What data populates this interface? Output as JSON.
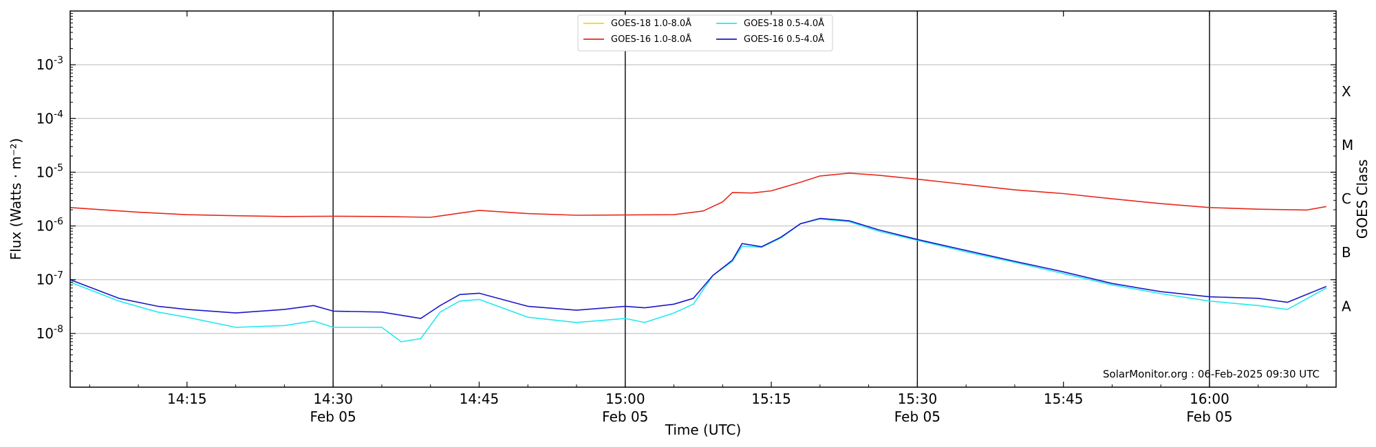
{
  "chart_data": {
    "type": "line",
    "xlabel": "Time (UTC)",
    "ylabel": "Flux (Watts · m⁻²)",
    "y2label": "GOES Class",
    "yscale": "log",
    "ylim": [
      1e-09,
      0.01
    ],
    "xlim": [
      "14:03",
      "16:13"
    ],
    "grid": "horizontal",
    "legend_position": "top-center",
    "x_ticks": [
      {
        "time": "14:15",
        "date": ""
      },
      {
        "time": "14:30",
        "date": "Feb 05"
      },
      {
        "time": "14:45",
        "date": ""
      },
      {
        "time": "15:00",
        "date": "Feb 05"
      },
      {
        "time": "15:15",
        "date": ""
      },
      {
        "time": "15:30",
        "date": "Feb 05"
      },
      {
        "time": "15:45",
        "date": ""
      },
      {
        "time": "16:00",
        "date": "Feb 05"
      }
    ],
    "vlines": [
      "14:30",
      "15:00",
      "15:30",
      "16:00"
    ],
    "y_ticks": [
      {
        "exp": "-3",
        "value": 0.001
      },
      {
        "exp": "-4",
        "value": 0.0001
      },
      {
        "exp": "-5",
        "value": 1e-05
      },
      {
        "exp": "-6",
        "value": 1e-06
      },
      {
        "exp": "-7",
        "value": 1e-07
      },
      {
        "exp": "-8",
        "value": 1e-08
      }
    ],
    "goes_classes": [
      {
        "label": "X",
        "value": 0.00032
      },
      {
        "label": "M",
        "value": 3.2e-05
      },
      {
        "label": "C",
        "value": 3.2e-06
      },
      {
        "label": "B",
        "value": 3.2e-07
      },
      {
        "label": "A",
        "value": 3.2e-08
      }
    ],
    "legend": [
      {
        "label": "GOES-18 1.0-8.0Å",
        "color": "#f2d900"
      },
      {
        "label": "GOES-16 1.0-8.0Å",
        "color": "#e8271a"
      },
      {
        "label": "GOES-18 0.5-4.0Å",
        "color": "#22e8f0"
      },
      {
        "label": "GOES-16 0.5-4.0Å",
        "color": "#1c16c8"
      }
    ],
    "annotation": "SolarMonitor.org : 06-Feb-2025 09:30 UTC",
    "series": [
      {
        "name": "GOES-16 1.0-8.0Å",
        "color": "#e8271a",
        "x": [
          "14:03",
          "14:10",
          "14:15",
          "14:20",
          "14:25",
          "14:30",
          "14:35",
          "14:40",
          "14:45",
          "14:50",
          "14:55",
          "15:00",
          "15:05",
          "15:08",
          "15:10",
          "15:11",
          "15:13",
          "15:15",
          "15:18",
          "15:20",
          "15:23",
          "15:26",
          "15:30",
          "15:35",
          "15:40",
          "15:45",
          "15:50",
          "15:55",
          "16:00",
          "16:05",
          "16:10",
          "16:12"
        ],
        "y": [
          2.2e-06,
          1.8e-06,
          1.62e-06,
          1.55e-06,
          1.5e-06,
          1.52e-06,
          1.5e-06,
          1.45e-06,
          1.95e-06,
          1.7e-06,
          1.58e-06,
          1.6e-06,
          1.62e-06,
          1.9e-06,
          2.8e-06,
          4.2e-06,
          4.1e-06,
          4.5e-06,
          6.5e-06,
          8.5e-06,
          9.6e-06,
          8.8e-06,
          7.4e-06,
          5.9e-06,
          4.7e-06,
          4e-06,
          3.2e-06,
          2.6e-06,
          2.2e-06,
          2.05e-06,
          1.98e-06,
          2.3e-06
        ]
      },
      {
        "name": "GOES-18 0.5-4.0Å",
        "color": "#22e8f0",
        "x": [
          "14:03",
          "14:08",
          "14:12",
          "14:15",
          "14:20",
          "14:25",
          "14:28",
          "14:30",
          "14:35",
          "14:37",
          "14:39",
          "14:41",
          "14:43",
          "14:45",
          "14:50",
          "14:55",
          "15:00",
          "15:02",
          "15:05",
          "15:07",
          "15:09",
          "15:11",
          "15:12",
          "15:14",
          "15:16",
          "15:18",
          "15:20",
          "15:23",
          "15:26",
          "15:30",
          "15:35",
          "15:40",
          "15:45",
          "15:50",
          "15:55",
          "16:00",
          "16:05",
          "16:08",
          "16:12"
        ],
        "y": [
          9e-08,
          4e-08,
          2.5e-08,
          2e-08,
          1.3e-08,
          1.4e-08,
          1.7e-08,
          1.3e-08,
          1.3e-08,
          7e-09,
          8e-09,
          2.5e-08,
          4e-08,
          4.3e-08,
          2e-08,
          1.6e-08,
          1.9e-08,
          1.6e-08,
          2.4e-08,
          3.5e-08,
          1.2e-07,
          2.2e-07,
          4.2e-07,
          4e-07,
          6e-07,
          1.1e-06,
          1.35e-06,
          1.2e-06,
          8e-07,
          5.4e-07,
          3.3e-07,
          2.1e-07,
          1.3e-07,
          8e-08,
          5.5e-08,
          4e-08,
          3.3e-08,
          2.8e-08,
          7e-08
        ]
      },
      {
        "name": "GOES-16 0.5-4.0Å",
        "color": "#1c16c8",
        "x": [
          "14:03",
          "14:08",
          "14:12",
          "14:15",
          "14:20",
          "14:25",
          "14:28",
          "14:30",
          "14:35",
          "14:39",
          "14:41",
          "14:43",
          "14:45",
          "14:50",
          "14:55",
          "15:00",
          "15:02",
          "15:05",
          "15:07",
          "15:09",
          "15:11",
          "15:12",
          "15:14",
          "15:16",
          "15:18",
          "15:20",
          "15:23",
          "15:26",
          "15:30",
          "15:35",
          "15:40",
          "15:45",
          "15:50",
          "15:55",
          "16:00",
          "16:05",
          "16:08",
          "16:12"
        ],
        "y": [
          1e-07,
          4.5e-08,
          3.2e-08,
          2.8e-08,
          2.4e-08,
          2.8e-08,
          3.3e-08,
          2.6e-08,
          2.5e-08,
          1.9e-08,
          3.3e-08,
          5.3e-08,
          5.6e-08,
          3.2e-08,
          2.7e-08,
          3.2e-08,
          3e-08,
          3.5e-08,
          4.5e-08,
          1.2e-07,
          2.3e-07,
          4.7e-07,
          4.1e-07,
          6.2e-07,
          1.1e-06,
          1.38e-06,
          1.25e-06,
          8.5e-07,
          5.6e-07,
          3.5e-07,
          2.2e-07,
          1.4e-07,
          8.5e-08,
          6e-08,
          4.8e-08,
          4.5e-08,
          3.8e-08,
          7.5e-08
        ]
      }
    ]
  }
}
